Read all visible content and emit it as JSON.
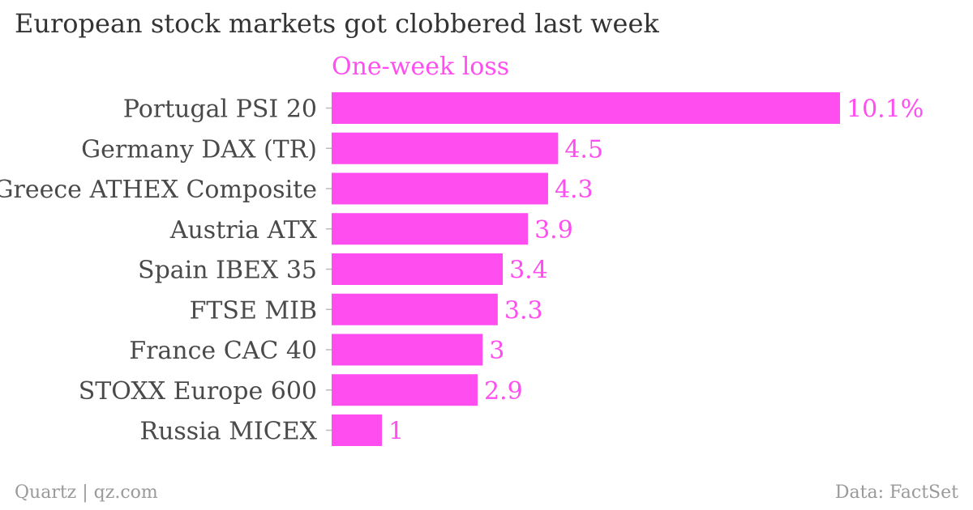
{
  "title": "European stock markets got clobbered last week",
  "footer": {
    "source_left": "Quartz | qz.com",
    "source_right": "Data: FactSet"
  },
  "colors": {
    "bar": "#ff4df0",
    "label": "#ff4df0",
    "category_text": "#4a4a4a",
    "tick": "#bbbbbb"
  },
  "chart_data": {
    "type": "bar",
    "orientation": "horizontal",
    "series": [
      {
        "name": "One-week loss",
        "values": [
          10.1,
          4.5,
          4.3,
          3.9,
          3.4,
          3.3,
          3,
          2.9,
          1
        ],
        "value_labels": [
          "10.1%",
          "4.5",
          "4.3",
          "3.9",
          "3.4",
          "3.3",
          "3",
          "2.9",
          "1"
        ]
      }
    ],
    "categories": [
      "Portugal PSI 20",
      "Germany DAX (TR)",
      "Greece ATHEX Composite",
      "Austria ATX",
      "Spain IBEX 35",
      "FTSE MIB",
      "France CAC 40",
      "STOXX Europe 600",
      "Russia MICEX"
    ],
    "title": "European stock markets got clobbered last week",
    "xlabel": "",
    "ylabel": "",
    "xlim": [
      0,
      10.1
    ],
    "grid": false,
    "legend": "top"
  }
}
